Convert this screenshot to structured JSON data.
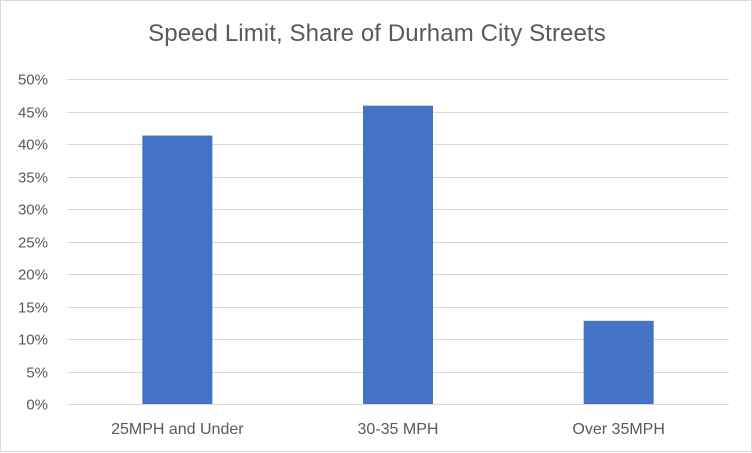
{
  "chart_data": {
    "type": "bar",
    "title": "Speed Limit, Share of Durham City Streets",
    "categories": [
      "25MPH and Under",
      "30-35 MPH",
      "Over 35MPH"
    ],
    "values": [
      41.3,
      45.9,
      12.8
    ],
    "value_unit": "%",
    "xlabel": "",
    "ylabel": "",
    "ylim": [
      0,
      50
    ],
    "yticks": [
      "0%",
      "5%",
      "10%",
      "15%",
      "20%",
      "25%",
      "30%",
      "35%",
      "40%",
      "45%",
      "50%"
    ],
    "grid": true,
    "legend": "none",
    "bar_color": "#4472C4",
    "grid_color": "#d9d9d9",
    "text_color": "#595959"
  }
}
